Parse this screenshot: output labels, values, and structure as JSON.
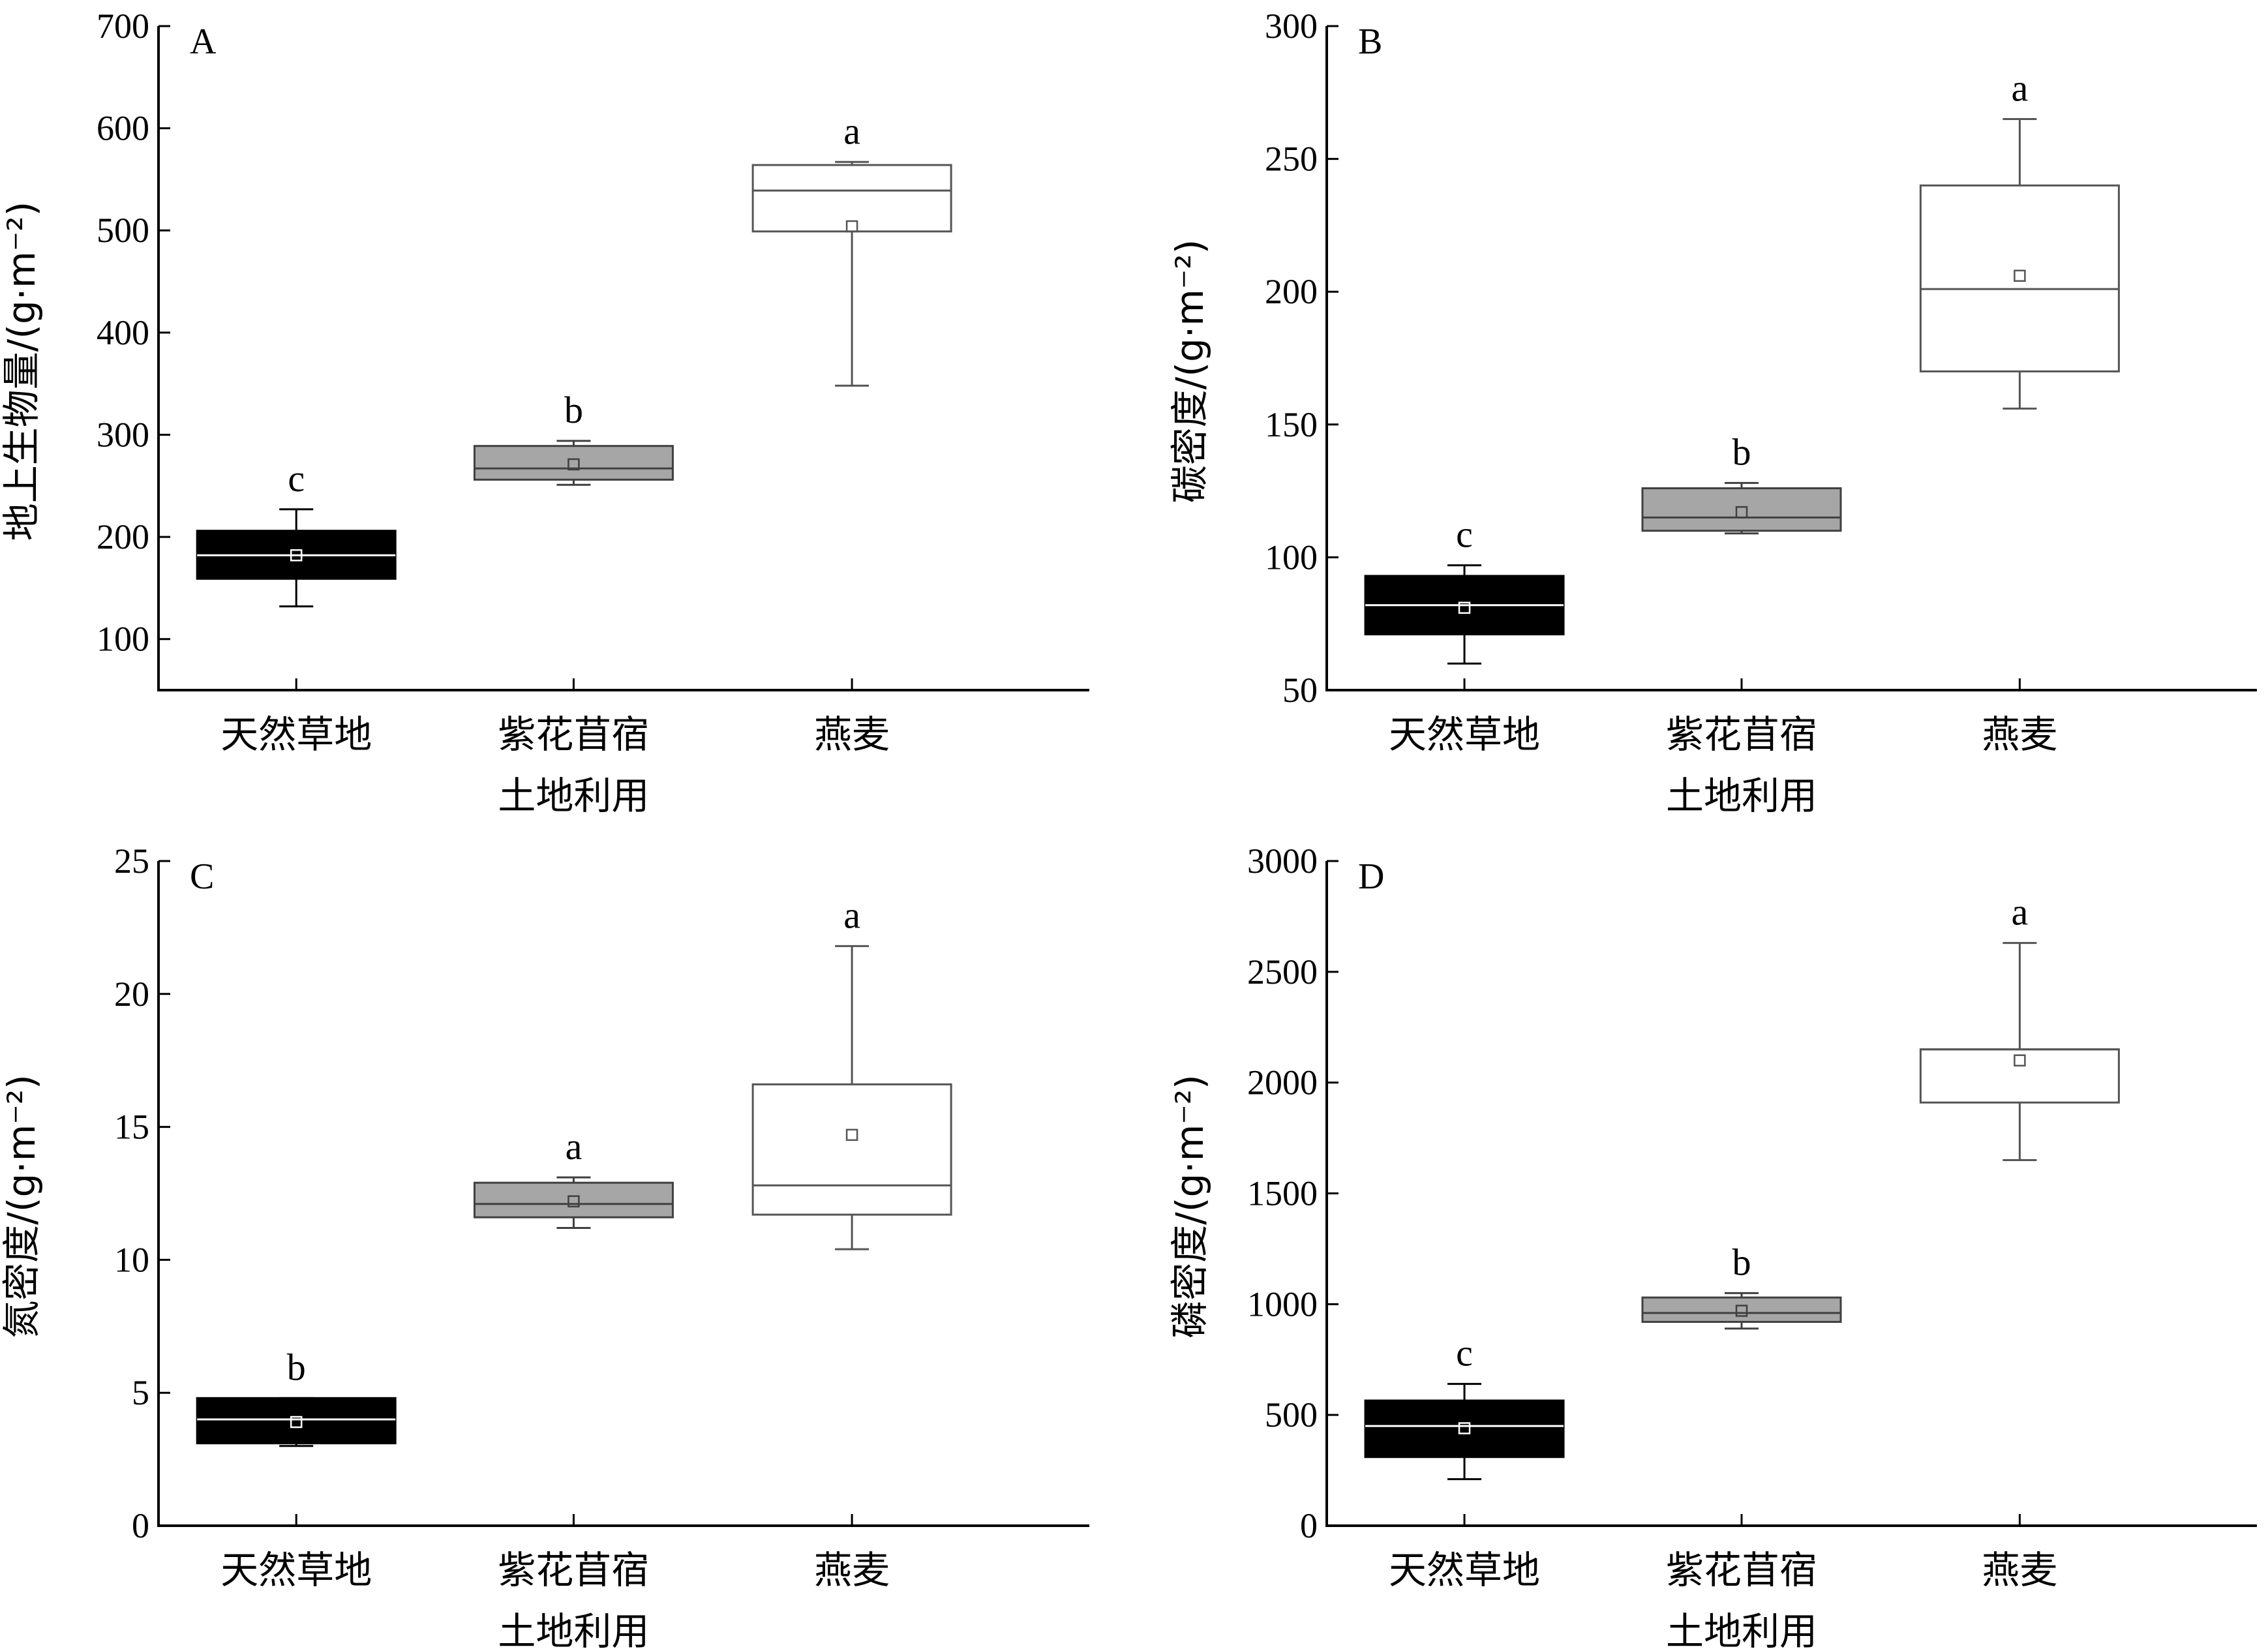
{
  "chart_data": [
    {
      "type": "boxplot",
      "panel_label": "A",
      "ylabel": "地上生物量/(g·m⁻²)",
      "xlabel": "土地利用",
      "ylim": [
        50,
        700
      ],
      "yticks": [
        100,
        200,
        300,
        400,
        500,
        600,
        700
      ],
      "categories": [
        "天然草地",
        "紫花苜宿",
        "燕麦"
      ],
      "boxes": [
        {
          "min": 132,
          "q1": 159,
          "median": 182,
          "q3": 206,
          "max": 227,
          "mean": 182,
          "letter": "c",
          "fill": "#000000",
          "stroke": "#000000",
          "median_color": "#ffffff"
        },
        {
          "min": 251,
          "q1": 256,
          "median": 267,
          "q3": 289,
          "max": 294,
          "mean": 271,
          "letter": "b",
          "fill": "#a6a6a6",
          "stroke": "#404040",
          "median_color": "#404040"
        },
        {
          "min": 348,
          "q1": 499,
          "median": 539,
          "q3": 564,
          "max": 567,
          "mean": 504,
          "letter": "a",
          "fill": "#ffffff",
          "stroke": "#555555",
          "median_color": "#555555"
        }
      ]
    },
    {
      "type": "boxplot",
      "panel_label": "B",
      "ylabel": "碳密度/(g·m⁻²)",
      "xlabel": "土地利用",
      "ylim": [
        50,
        300
      ],
      "yticks": [
        50,
        100,
        150,
        200,
        250,
        300
      ],
      "categories": [
        "天然草地",
        "紫花苜宿",
        "燕麦"
      ],
      "boxes": [
        {
          "min": 60,
          "q1": 71,
          "median": 82,
          "q3": 93,
          "max": 97,
          "mean": 81,
          "letter": "c",
          "fill": "#000000",
          "stroke": "#000000",
          "median_color": "#ffffff"
        },
        {
          "min": 109,
          "q1": 110,
          "median": 115,
          "q3": 126,
          "max": 128,
          "mean": 117,
          "letter": "b",
          "fill": "#a6a6a6",
          "stroke": "#404040",
          "median_color": "#404040"
        },
        {
          "min": 156,
          "q1": 170,
          "median": 201,
          "q3": 240,
          "max": 265,
          "mean": 206,
          "letter": "a",
          "fill": "#ffffff",
          "stroke": "#555555",
          "median_color": "#555555"
        }
      ]
    },
    {
      "type": "boxplot",
      "panel_label": "C",
      "ylabel": "氮密度/(g·m⁻²)",
      "xlabel": "土地利用",
      "ylim": [
        0,
        25
      ],
      "yticks": [
        0,
        5,
        10,
        15,
        20,
        25
      ],
      "categories": [
        "天然草地",
        "紫花苜宿",
        "燕麦"
      ],
      "boxes": [
        {
          "min": 3.0,
          "q1": 3.1,
          "median": 4.0,
          "q3": 4.8,
          "max": 4.8,
          "mean": 3.9,
          "letter": "b",
          "fill": "#000000",
          "stroke": "#000000",
          "median_color": "#ffffff"
        },
        {
          "min": 11.2,
          "q1": 11.6,
          "median": 12.1,
          "q3": 12.9,
          "max": 13.1,
          "mean": 12.2,
          "letter": "a",
          "fill": "#a6a6a6",
          "stroke": "#404040",
          "median_color": "#404040"
        },
        {
          "min": 10.4,
          "q1": 11.7,
          "median": 12.8,
          "q3": 16.6,
          "max": 21.8,
          "mean": 14.7,
          "letter": "a",
          "fill": "#ffffff",
          "stroke": "#555555",
          "median_color": "#555555"
        }
      ]
    },
    {
      "type": "boxplot",
      "panel_label": "D",
      "ylabel": "磷密度/(g·m⁻²)",
      "xlabel": "土地利用",
      "ylim": [
        0,
        3000
      ],
      "yticks": [
        0,
        500,
        1000,
        1500,
        2000,
        2500,
        3000
      ],
      "categories": [
        "天然草地",
        "紫花苜宿",
        "燕麦"
      ],
      "boxes": [
        {
          "min": 210,
          "q1": 310,
          "median": 450,
          "q3": 565,
          "max": 640,
          "mean": 440,
          "letter": "c",
          "fill": "#000000",
          "stroke": "#000000",
          "median_color": "#ffffff"
        },
        {
          "min": 890,
          "q1": 920,
          "median": 960,
          "q3": 1030,
          "max": 1050,
          "mean": 970,
          "letter": "b",
          "fill": "#a6a6a6",
          "stroke": "#404040",
          "median_color": "#404040"
        },
        {
          "min": 1650,
          "q1": 1910,
          "median": 2150,
          "q3": 2150,
          "max": 2630,
          "mean": 2100,
          "letter": "a",
          "fill": "#ffffff",
          "stroke": "#555555",
          "median_color": "#555555"
        }
      ]
    }
  ]
}
